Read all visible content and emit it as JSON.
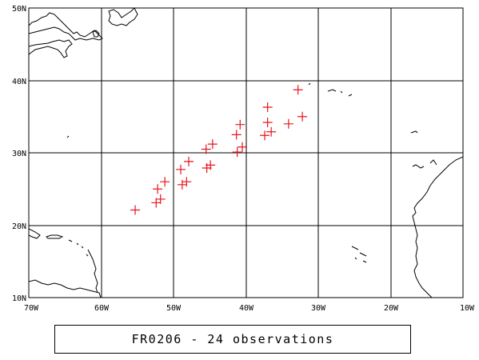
{
  "chart_data": {
    "type": "scatter",
    "title": "FR0206 - 24 observations",
    "projection": "equirectangular",
    "xlim": [
      -70,
      -10
    ],
    "ylim": [
      10,
      50
    ],
    "grid": true,
    "x_ticks": [
      {
        "value": -70,
        "label": "70W"
      },
      {
        "value": -60,
        "label": "60W"
      },
      {
        "value": -50,
        "label": "50W"
      },
      {
        "value": -40,
        "label": "40W"
      },
      {
        "value": -30,
        "label": "30W"
      },
      {
        "value": -20,
        "label": "20W"
      },
      {
        "value": -10,
        "label": "10W"
      }
    ],
    "y_ticks": [
      {
        "value": 10,
        "label": "10N"
      },
      {
        "value": 20,
        "label": "20N"
      },
      {
        "value": 30,
        "label": "30N"
      },
      {
        "value": 40,
        "label": "40N"
      },
      {
        "value": 50,
        "label": "50N"
      }
    ],
    "marker": "plus",
    "marker_color": "#e8141d",
    "series": [
      {
        "points": [
          [
            -55.3,
            22.1
          ],
          [
            -52.4,
            23.1
          ],
          [
            -51.8,
            23.6
          ],
          [
            -52.2,
            25.0
          ],
          [
            -51.2,
            26.0
          ],
          [
            -48.8,
            25.6
          ],
          [
            -48.2,
            26.0
          ],
          [
            -49.0,
            27.7
          ],
          [
            -47.9,
            28.8
          ],
          [
            -45.4,
            27.9
          ],
          [
            -44.9,
            28.3
          ],
          [
            -45.5,
            30.5
          ],
          [
            -44.6,
            31.2
          ],
          [
            -41.2,
            30.1
          ],
          [
            -40.5,
            30.8
          ],
          [
            -41.3,
            32.5
          ],
          [
            -40.8,
            33.9
          ],
          [
            -37.4,
            32.4
          ],
          [
            -36.5,
            32.9
          ],
          [
            -37.0,
            34.2
          ],
          [
            -37.0,
            36.3
          ],
          [
            -34.1,
            34.0
          ],
          [
            -32.2,
            35.0
          ],
          [
            -32.8,
            38.7
          ]
        ]
      }
    ]
  },
  "caption": "FR0206 - 24 observations",
  "colors": {
    "frame": "#000000",
    "grid": "#000000",
    "coast": "#000000",
    "marker": "#e8141d"
  }
}
